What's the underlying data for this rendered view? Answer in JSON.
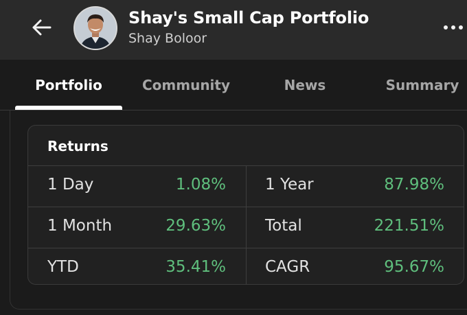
{
  "header": {
    "title": "Shay's Small Cap Portfolio",
    "subtitle": "Shay Boloor",
    "icons": {
      "back": "arrow-left-icon",
      "more": "more-horizontal-icon"
    }
  },
  "tabs": [
    {
      "label": "Portfolio",
      "active": true
    },
    {
      "label": "Community",
      "active": false
    },
    {
      "label": "News",
      "active": false
    },
    {
      "label": "Summary",
      "active": false
    }
  ],
  "returns": {
    "title": "Returns",
    "rows": [
      {
        "left_label": "1 Day",
        "left_value": "1.08%",
        "right_label": "1 Year",
        "right_value": "87.98%"
      },
      {
        "left_label": "1 Month",
        "left_value": "29.63%",
        "right_label": "Total",
        "right_value": "221.51%"
      },
      {
        "left_label": "YTD",
        "left_value": "35.41%",
        "right_label": "CAGR",
        "right_value": "95.67%"
      }
    ]
  },
  "colors": {
    "background": "#1b1b1b",
    "header_bg": "#2a2a2a",
    "positive": "#5fbf7d",
    "text": "#e2e2e2"
  }
}
